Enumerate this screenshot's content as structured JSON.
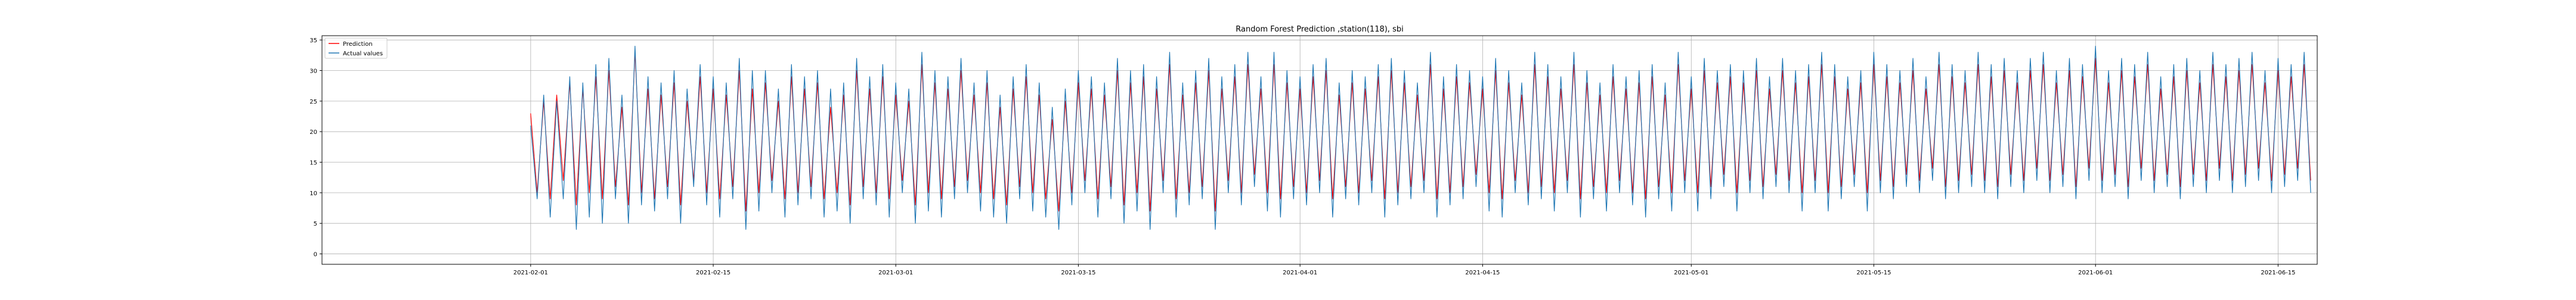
{
  "chart_data": {
    "type": "line",
    "title": "Random Forest Prediction ,station(118), sbi",
    "xlabel": "",
    "ylabel": "",
    "xlim": [
      "2021-01-16",
      "2021-06-18"
    ],
    "ylim": [
      -1.7,
      35.7
    ],
    "grid": true,
    "legend_placement": "top-left",
    "x_ticks": [
      "2021-02-01",
      "2021-02-15",
      "2021-03-01",
      "2021-03-15",
      "2021-04-01",
      "2021-04-15",
      "2021-05-01",
      "2021-05-15",
      "2021-06-01",
      "2021-06-15"
    ],
    "y_ticks": [
      0,
      5,
      10,
      15,
      20,
      25,
      30,
      35
    ],
    "series": [
      {
        "name": "Prediction",
        "color": "#ff0000",
        "x_start": "2021-02-01",
        "x_step_days": 0.5,
        "values": [
          23,
          10,
          25,
          9,
          26,
          12,
          28,
          8,
          27,
          10,
          29,
          9,
          30,
          11,
          24,
          8,
          33,
          10,
          27,
          9,
          26,
          11,
          28,
          8,
          25,
          12,
          29,
          10,
          27,
          9,
          26,
          11,
          30,
          7,
          27,
          10,
          28,
          12,
          25,
          9,
          29,
          10,
          27,
          11,
          28,
          9,
          24,
          10,
          26,
          8,
          30,
          11,
          27,
          10,
          29,
          9,
          26,
          12,
          25,
          8,
          31,
          10,
          28,
          9,
          27,
          11,
          30,
          12,
          26,
          10,
          28,
          9,
          24,
          8,
          27,
          11,
          29,
          10,
          26,
          9,
          22,
          7,
          25,
          10,
          28,
          12,
          27,
          9,
          26,
          11,
          30,
          8,
          28,
          10,
          29,
          7,
          27,
          12,
          31,
          9,
          26,
          10,
          28,
          11,
          30,
          7,
          27,
          12,
          29,
          10,
          31,
          13,
          27,
          10,
          31,
          9,
          28,
          11,
          27,
          10,
          29,
          12,
          30,
          9,
          26,
          11,
          28,
          10,
          27,
          12,
          29,
          9,
          30,
          10,
          28,
          11,
          26,
          12,
          31,
          9,
          27,
          10,
          29,
          11,
          28,
          13,
          27,
          10,
          30,
          9,
          28,
          12,
          26,
          10,
          31,
          11,
          29,
          10,
          27,
          12,
          31,
          9,
          28,
          11,
          26,
          10,
          29,
          12,
          27,
          10,
          28,
          9,
          29,
          11,
          26,
          10,
          31,
          12,
          27,
          10,
          30,
          11,
          28,
          13,
          29,
          10,
          28,
          12,
          30,
          11,
          27,
          13,
          30,
          12,
          28,
          10,
          29,
          12,
          31,
          10,
          29,
          11,
          27,
          13,
          28,
          10,
          31,
          12,
          29,
          11,
          28,
          13,
          30,
          12,
          27,
          14,
          31,
          11,
          29,
          12,
          28,
          13,
          31,
          12,
          29,
          11,
          30,
          13,
          28,
          12,
          30,
          14,
          31,
          12,
          28,
          13,
          30,
          11,
          29,
          14,
          32,
          12,
          28,
          13,
          30,
          11,
          29,
          14,
          31,
          12,
          27,
          13,
          29,
          11,
          30,
          13,
          28,
          12,
          31,
          14,
          29,
          12,
          30,
          13,
          31,
          14,
          28,
          12,
          30,
          13,
          29,
          14,
          31,
          12
        ]
      },
      {
        "name": "Actual values",
        "color": "#1f77b4",
        "x_start": "2021-02-01",
        "x_step_days": 0.5,
        "values": [
          21,
          9,
          26,
          6,
          25,
          9,
          29,
          4,
          28,
          6,
          31,
          5,
          32,
          9,
          26,
          5,
          34,
          8,
          29,
          7,
          28,
          9,
          30,
          5,
          27,
          11,
          31,
          8,
          29,
          6,
          28,
          9,
          32,
          4,
          30,
          7,
          30,
          10,
          27,
          6,
          31,
          8,
          29,
          9,
          30,
          6,
          27,
          7,
          28,
          5,
          32,
          9,
          29,
          8,
          31,
          6,
          28,
          10,
          27,
          5,
          33,
          7,
          30,
          6,
          29,
          9,
          32,
          10,
          28,
          7,
          30,
          6,
          26,
          5,
          29,
          9,
          31,
          7,
          28,
          6,
          24,
          4,
          27,
          8,
          30,
          10,
          29,
          6,
          28,
          9,
          32,
          5,
          30,
          7,
          31,
          4,
          29,
          10,
          33,
          6,
          28,
          8,
          30,
          9,
          32,
          4,
          29,
          10,
          31,
          8,
          33,
          11,
          29,
          7,
          33,
          6,
          30,
          9,
          29,
          8,
          31,
          10,
          32,
          6,
          28,
          9,
          30,
          8,
          29,
          10,
          31,
          6,
          32,
          8,
          30,
          9,
          28,
          10,
          33,
          6,
          29,
          8,
          31,
          9,
          30,
          11,
          29,
          7,
          32,
          6,
          30,
          10,
          28,
          8,
          33,
          9,
          31,
          7,
          29,
          10,
          33,
          6,
          30,
          9,
          28,
          7,
          31,
          10,
          29,
          8,
          30,
          6,
          31,
          9,
          28,
          7,
          33,
          10,
          29,
          7,
          32,
          9,
          30,
          11,
          31,
          7,
          30,
          10,
          32,
          9,
          29,
          11,
          32,
          10,
          30,
          7,
          31,
          10,
          33,
          7,
          31,
          9,
          29,
          11,
          30,
          7,
          33,
          10,
          31,
          9,
          30,
          11,
          32,
          10,
          29,
          12,
          33,
          9,
          31,
          10,
          30,
          11,
          33,
          10,
          31,
          9,
          32,
          11,
          30,
          10,
          32,
          12,
          33,
          10,
          30,
          11,
          32,
          9,
          31,
          12,
          34,
          10,
          30,
          11,
          32,
          9,
          31,
          12,
          33,
          10,
          29,
          11,
          31,
          9,
          32,
          11,
          30,
          10,
          33,
          12,
          31,
          10,
          32,
          11,
          33,
          12,
          30,
          10,
          32,
          11,
          31,
          12,
          33,
          10
        ]
      }
    ]
  }
}
